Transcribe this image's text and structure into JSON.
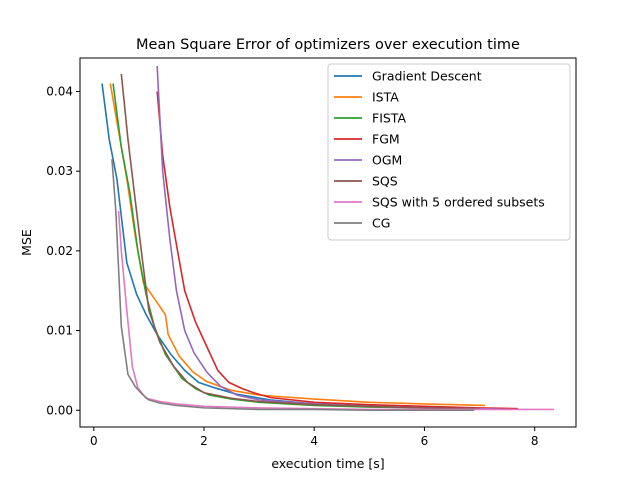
{
  "chart_data": {
    "type": "line",
    "title": "Mean Square Error of optimizers over execution time",
    "xlabel": "execution time [s]",
    "ylabel": "MSE",
    "xlim": [
      -0.25,
      8.75
    ],
    "ylim": [
      -0.0021,
      0.0442
    ],
    "xticks": [
      0,
      2,
      4,
      6,
      8
    ],
    "xtick_labels": [
      "0",
      "2",
      "4",
      "6",
      "8"
    ],
    "yticks": [
      0,
      0.01,
      0.02,
      0.03,
      0.04
    ],
    "ytick_labels": [
      "0.00",
      "0.01",
      "0.02",
      "0.03",
      "0.04"
    ],
    "grid": false,
    "legend_position": "top-right",
    "series": [
      {
        "name": "Gradient Descent",
        "color": "#1f77b4",
        "x": [
          0.15,
          0.28,
          0.42,
          0.6,
          0.78,
          0.95,
          1.15,
          1.4,
          1.65,
          1.9,
          2.2,
          2.6,
          3.2,
          4.0,
          5.0,
          6.0,
          7.0
        ],
        "y": [
          0.041,
          0.034,
          0.029,
          0.0185,
          0.0145,
          0.012,
          0.0095,
          0.007,
          0.005,
          0.0035,
          0.0028,
          0.002,
          0.0013,
          0.0008,
          0.0005,
          0.0003,
          0.0002
        ]
      },
      {
        "name": "ISTA",
        "color": "#ff7f0e",
        "x": [
          0.3,
          0.45,
          0.6,
          0.75,
          0.9,
          1.0,
          1.15,
          1.3,
          1.35,
          1.55,
          1.8,
          2.05,
          2.5,
          3.0,
          4.0,
          5.0,
          6.0,
          7.1
        ],
        "y": [
          0.041,
          0.035,
          0.029,
          0.022,
          0.016,
          0.015,
          0.0135,
          0.012,
          0.0095,
          0.0068,
          0.0048,
          0.0036,
          0.0025,
          0.0019,
          0.0014,
          0.001,
          0.0008,
          0.0006
        ]
      },
      {
        "name": "FISTA",
        "color": "#2ca02c",
        "x": [
          0.35,
          0.5,
          0.65,
          0.8,
          0.95,
          1.1,
          1.3,
          1.6,
          1.85,
          2.1,
          2.5,
          3.0,
          4.0,
          5.0,
          6.0,
          6.8
        ],
        "y": [
          0.041,
          0.033,
          0.0275,
          0.02,
          0.0145,
          0.0105,
          0.007,
          0.004,
          0.0027,
          0.0019,
          0.0014,
          0.001,
          0.0006,
          0.0004,
          0.0003,
          0.0002
        ]
      },
      {
        "name": "FGM",
        "color": "#d62728",
        "x": [
          1.15,
          1.25,
          1.38,
          1.52,
          1.65,
          1.85,
          2.05,
          2.25,
          2.45,
          2.7,
          2.9,
          3.2,
          4.0,
          5.0,
          6.0,
          7.0,
          7.7
        ],
        "y": [
          0.04,
          0.032,
          0.0255,
          0.02,
          0.015,
          0.011,
          0.008,
          0.005,
          0.0035,
          0.0027,
          0.0022,
          0.0016,
          0.001,
          0.0007,
          0.0005,
          0.0003,
          0.0002
        ]
      },
      {
        "name": "OGM",
        "color": "#9467bd",
        "x": [
          1.15,
          1.25,
          1.38,
          1.5,
          1.65,
          1.82,
          2.05,
          2.3,
          2.6,
          3.0,
          4.0,
          5.0,
          6.0,
          7.0,
          7.6
        ],
        "y": [
          0.0432,
          0.03,
          0.0215,
          0.015,
          0.01,
          0.0072,
          0.0048,
          0.003,
          0.0019,
          0.0013,
          0.0008,
          0.0005,
          0.0003,
          0.0002,
          0.0001
        ]
      },
      {
        "name": "SQS",
        "color": "#8c564b",
        "x": [
          0.5,
          0.62,
          0.75,
          0.88,
          1.0,
          1.2,
          1.45,
          1.7,
          2.0,
          2.5,
          3.0,
          4.0,
          5.0,
          6.0,
          7.0
        ],
        "y": [
          0.0422,
          0.034,
          0.0265,
          0.019,
          0.0125,
          0.0085,
          0.0055,
          0.0035,
          0.0022,
          0.0015,
          0.0011,
          0.0007,
          0.0005,
          0.0003,
          0.0002
        ]
      },
      {
        "name": "SQS with 5 ordered subsets",
        "color": "#e377c2",
        "x": [
          0.45,
          0.5,
          0.6,
          0.7,
          0.8,
          0.95,
          1.2,
          1.5,
          2.0,
          3.0,
          4.0,
          5.0,
          6.0,
          7.0,
          8.35
        ],
        "y": [
          0.025,
          0.02,
          0.0125,
          0.0055,
          0.0028,
          0.0015,
          0.0011,
          0.0008,
          0.0005,
          0.0003,
          0.0002,
          0.0001,
          0.0001,
          0.0001,
          0.0001
        ]
      },
      {
        "name": "CG",
        "color": "#7f7f7f",
        "x": [
          0.33,
          0.4,
          0.5,
          0.62,
          0.75,
          0.88,
          1.0,
          1.2,
          1.5,
          2.0,
          3.0,
          4.0,
          5.0,
          6.0,
          6.9
        ],
        "y": [
          0.0315,
          0.025,
          0.0105,
          0.0045,
          0.003,
          0.002,
          0.0013,
          0.0009,
          0.0006,
          0.0003,
          0.0001,
          0.0001,
          0.0,
          0.0,
          0.0
        ]
      }
    ]
  }
}
